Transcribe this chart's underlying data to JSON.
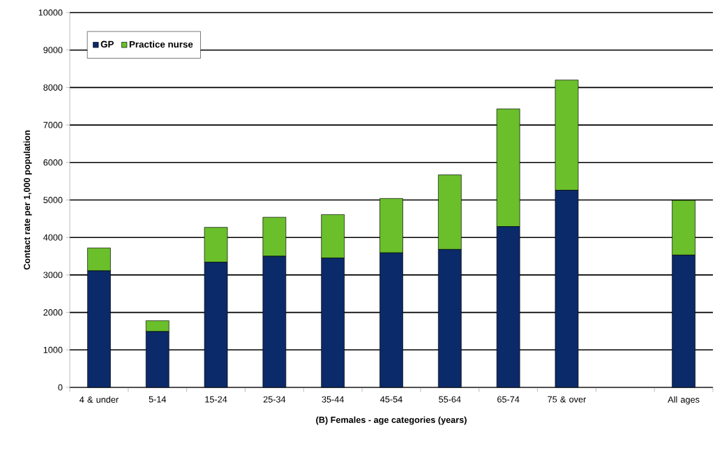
{
  "chart_data": {
    "type": "bar",
    "stacked": true,
    "xlabel": "(B) Females - age categories (years)",
    "ylabel": "Contact rate per 1,000 population",
    "categories": [
      "4 & under",
      "5-14",
      "15-24",
      "25-34",
      "35-44",
      "45-54",
      "55-64",
      "65-74",
      "75 & over",
      null,
      "All ages"
    ],
    "series": [
      {
        "name": "GP",
        "color": "#0b2a69",
        "values": [
          3110,
          1490,
          3340,
          3500,
          3450,
          3590,
          3680,
          4290,
          5260,
          null,
          3530
        ]
      },
      {
        "name": "Practice nurse",
        "color": "#6abf2b",
        "values": [
          610,
          290,
          930,
          1040,
          1160,
          1450,
          1990,
          3140,
          2940,
          null,
          1460
        ]
      }
    ],
    "ylim": [
      0,
      10000
    ],
    "yticks": [
      0,
      1000,
      2000,
      3000,
      4000,
      5000,
      6000,
      7000,
      8000,
      9000,
      10000
    ],
    "grid": "y",
    "legend": "top left"
  }
}
